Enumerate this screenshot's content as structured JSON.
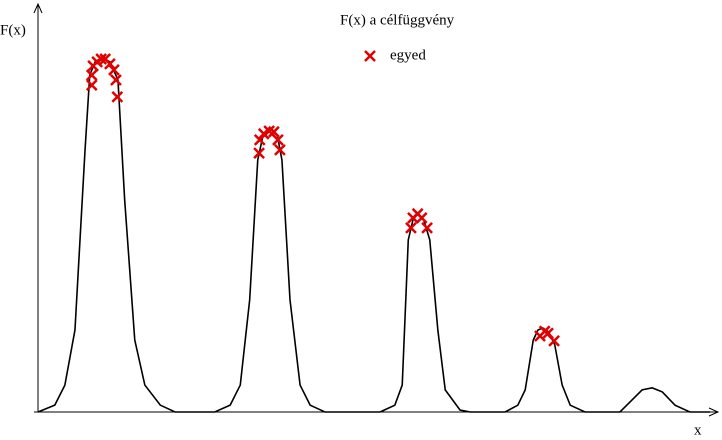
{
  "chart_data": {
    "type": "line",
    "y_label": "F(x)",
    "x_label": "x",
    "xlim": [
      0,
      1
    ],
    "ylim": [
      0,
      1
    ],
    "series": [
      {
        "name": "F(x) a célfüggvény",
        "color": "#000000",
        "kind": "line",
        "x": [
          0,
          0.025,
          0.04,
          0.055,
          0.07,
          0.077,
          0.085,
          0.095,
          0.107,
          0.119,
          0.129,
          0.144,
          0.159,
          0.182,
          0.204,
          0.263,
          0.286,
          0.301,
          0.315,
          0.327,
          0.335,
          0.345,
          0.356,
          0.363,
          0.375,
          0.39,
          0.405,
          0.427,
          0.509,
          0.531,
          0.542,
          0.551,
          0.558,
          0.565,
          0.574,
          0.583,
          0.595,
          0.606,
          0.628,
          0.643,
          0.695,
          0.714,
          0.725,
          0.737,
          0.744,
          0.751,
          0.76,
          0.769,
          0.78,
          0.792,
          0.814,
          0.866,
          0.884,
          0.899,
          0.914,
          0.929,
          0.948,
          0.97,
          1.0
        ],
        "values": [
          0,
          0.017,
          0.067,
          0.204,
          0.652,
          0.838,
          0.871,
          0.881,
          0.871,
          0.826,
          0.527,
          0.179,
          0.067,
          0.017,
          0,
          0,
          0.017,
          0.067,
          0.279,
          0.627,
          0.689,
          0.706,
          0.689,
          0.627,
          0.279,
          0.067,
          0.017,
          0,
          0,
          0.017,
          0.067,
          0.428,
          0.478,
          0.493,
          0.478,
          0.428,
          0.204,
          0.055,
          0.005,
          0,
          0,
          0.017,
          0.055,
          0.179,
          0.204,
          0.209,
          0.199,
          0.167,
          0.067,
          0.017,
          0,
          0,
          0.03,
          0.055,
          0.06,
          0.05,
          0.017,
          0,
          0
        ]
      },
      {
        "name": "egyed",
        "color": "#e00000",
        "kind": "scatter",
        "x": [
          0.08,
          0.08,
          0.082,
          0.088,
          0.094,
          0.1,
          0.107,
          0.113,
          0.116,
          0.118,
          0.329,
          0.33,
          0.336,
          0.344,
          0.351,
          0.357,
          0.36,
          0.555,
          0.558,
          0.565,
          0.571,
          0.579,
          0.747,
          0.754,
          0.759,
          0.768
        ],
        "values": [
          0.813,
          0.838,
          0.861,
          0.871,
          0.878,
          0.878,
          0.866,
          0.851,
          0.826,
          0.784,
          0.644,
          0.677,
          0.692,
          0.699,
          0.697,
          0.677,
          0.652,
          0.458,
          0.483,
          0.493,
          0.483,
          0.458,
          0.189,
          0.201,
          0.196,
          0.177
        ]
      }
    ]
  }
}
